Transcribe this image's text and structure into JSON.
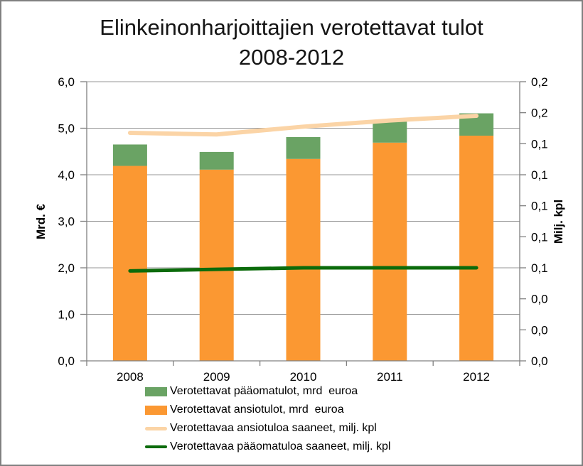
{
  "title": {
    "line1": "Elinkeinonharjoittajien verotettavat tulot",
    "line2": "2008-2012"
  },
  "chart_data": {
    "type": "bar",
    "subtype": "stacked-bars-with-lines",
    "title": "Elinkeinonharjoittajien verotettavat tulot 2008-2012",
    "categories": [
      "2008",
      "2009",
      "2010",
      "2011",
      "2012"
    ],
    "series": [
      {
        "name": "Verotettavat pääomatulot, mrd  euroa",
        "kind": "bar",
        "stack_order": 2,
        "axis": "left",
        "color": "#6AA364",
        "values": [
          0.46,
          0.38,
          0.47,
          0.46,
          0.48
        ]
      },
      {
        "name": "Verotettavat ansiotulot, mrd  euroa",
        "kind": "bar",
        "stack_order": 1,
        "axis": "left",
        "color": "#FB9832",
        "values": [
          4.19,
          4.11,
          4.34,
          4.69,
          4.84
        ]
      },
      {
        "name": "Verotettavaa ansiotuloa saaneet, milj. kpl",
        "kind": "line",
        "axis": "right",
        "color": "#FBD4A6",
        "stroke_width": 6,
        "values": [
          0.147,
          0.146,
          0.151,
          0.155,
          0.158
        ]
      },
      {
        "name": "Verotettavaa pääomatuloa saaneet, milj. kpl",
        "kind": "line",
        "axis": "right",
        "color": "#0B6B0B",
        "stroke_width": 5,
        "values": [
          0.058,
          0.059,
          0.06,
          0.06,
          0.06
        ]
      }
    ],
    "left_axis": {
      "title": "Mrd. €",
      "min": 0,
      "max": 6,
      "tick_step": 1,
      "tick_labels": [
        "0,0",
        "1,0",
        "2,0",
        "3,0",
        "4,0",
        "5,0",
        "6,0"
      ]
    },
    "right_axis": {
      "title": "Milj. kpl",
      "min": 0,
      "max": 0.18,
      "tick_step": 0.02,
      "tick_labels": [
        "0,0",
        "0,0",
        "0,0",
        "0,1",
        "0,1",
        "0,1",
        "0,1",
        "0,1",
        "0,2",
        "0,2"
      ]
    },
    "grid": true,
    "legend_position": "bottom",
    "colors": {
      "gridline": "#979797",
      "axis_line": "#808080",
      "text": "#000000",
      "frame_border": "#808080",
      "background": "#FFFFFF"
    }
  }
}
